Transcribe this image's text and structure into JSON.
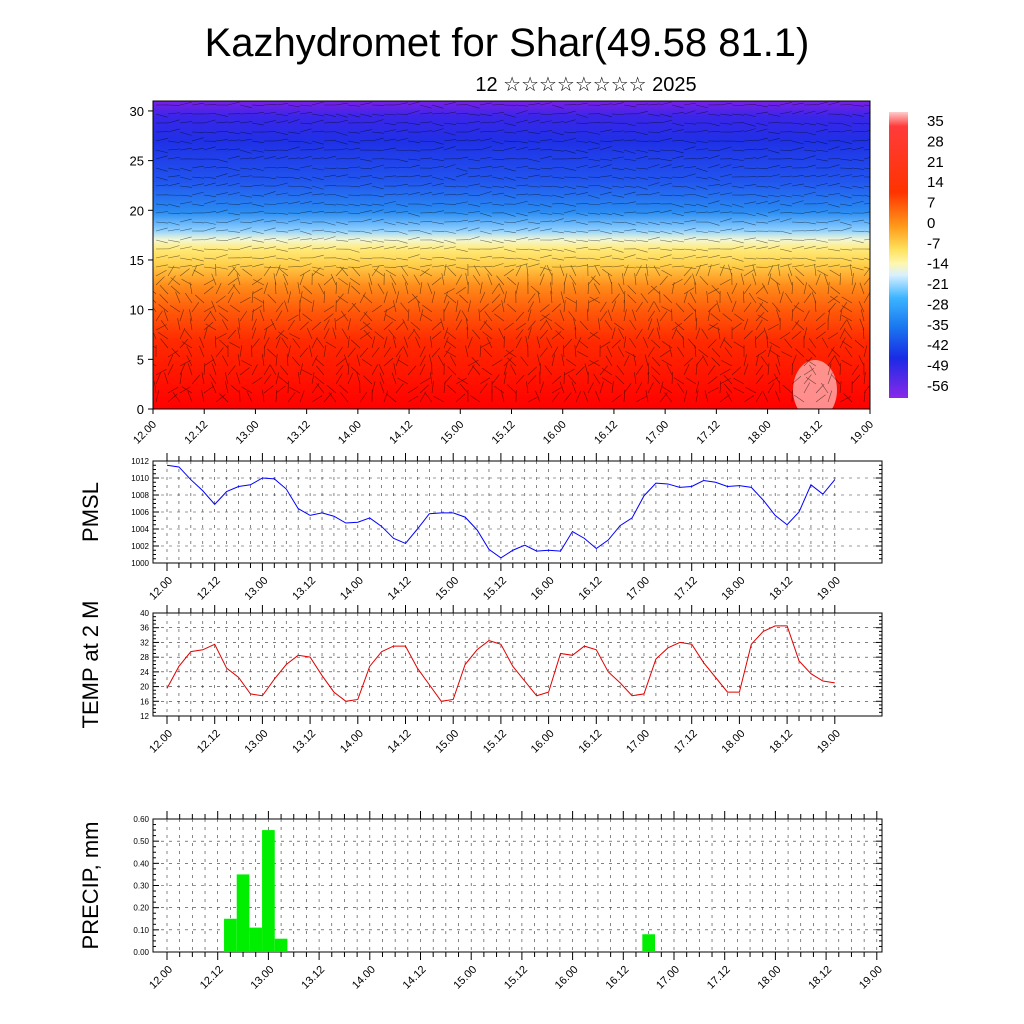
{
  "header": {
    "title": "Kazhydromet for Shar(49.58 81.1)",
    "subtitle": "12 ☆☆☆☆☆☆☆☆ 2025"
  },
  "time_labels": [
    "12.00",
    "12.12",
    "13.00",
    "13.12",
    "14.00",
    "14.12",
    "15.00",
    "15.12",
    "16.00",
    "16.12",
    "17.00",
    "17.12",
    "18.00",
    "18.12",
    "19.00"
  ],
  "chart_data": [
    {
      "id": "cross_section",
      "type": "heatmap",
      "x_tick_labels": [
        "12.00",
        "12.12",
        "13.00",
        "13.12",
        "14.00",
        "14.12",
        "15.00",
        "15.12",
        "16.00",
        "16.12",
        "17.00",
        "17.12",
        "18.00",
        "18.12",
        "19.00"
      ],
      "y_ticks": [
        0,
        5,
        10,
        15,
        20,
        25,
        30
      ],
      "ylim": [
        0,
        31
      ],
      "colorbar_ticks": [
        "35",
        "28",
        "21",
        "14",
        "7",
        "0",
        "-7",
        "-14",
        "-21",
        "-28",
        "-35",
        "-42",
        "-49",
        "-56"
      ],
      "value_range": [
        -60,
        38
      ],
      "colors": {
        "hot": "#ff0000",
        "warm": "#ff8c00",
        "neutral": "#fff29a",
        "cool": "#33aaff",
        "cold": "#1f2ee0",
        "coldest": "#7a1fe6"
      },
      "overlay": "wind-vectors"
    },
    {
      "id": "pmsl",
      "type": "line",
      "ylabel": "PMSL",
      "y_ticks": [
        "1000",
        "1002",
        "1004",
        "1006",
        "1008",
        "1010",
        "1012"
      ],
      "ylim": [
        1000,
        1012
      ],
      "x_tick_labels": [
        "12.00",
        "12.12",
        "13.00",
        "13.12",
        "14.00",
        "14.12",
        "15.00",
        "15.12",
        "16.00",
        "16.12",
        "17.00",
        "17.12",
        "18.00",
        "18.12",
        "19.00"
      ],
      "x_step_hours": 3,
      "color": "#0000ff",
      "values": [
        1011.5,
        1011.3,
        1009.8,
        1008.5,
        1006.9,
        1008.4,
        1009.0,
        1009.2,
        1010.0,
        1009.9,
        1008.7,
        1006.4,
        1005.6,
        1005.9,
        1005.5,
        1004.7,
        1004.8,
        1005.3,
        1004.3,
        1002.9,
        1002.3,
        1004.0,
        1005.8,
        1005.9,
        1005.9,
        1005.4,
        1003.9,
        1001.6,
        1000.6,
        1001.5,
        1002.1,
        1001.4,
        1001.5,
        1001.4,
        1003.7,
        1002.9,
        1001.7,
        1002.7,
        1004.4,
        1005.3,
        1007.9,
        1009.4,
        1009.3,
        1008.9,
        1009.0,
        1009.7,
        1009.5,
        1009.0,
        1009.1,
        1008.9,
        1007.4,
        1005.6,
        1004.5,
        1006.0,
        1009.2,
        1008.1,
        1009.8
      ]
    },
    {
      "id": "temp2m",
      "type": "line",
      "ylabel": "TEMP at 2 M",
      "y_ticks": [
        "12",
        "16",
        "20",
        "24",
        "28",
        "32",
        "36",
        "40"
      ],
      "ylim": [
        12,
        40
      ],
      "x_tick_labels": [
        "12.00",
        "12.12",
        "13.00",
        "13.12",
        "14.00",
        "14.12",
        "15.00",
        "15.12",
        "16.00",
        "16.12",
        "17.00",
        "17.12",
        "18.00",
        "18.12",
        "19.00"
      ],
      "x_step_hours": 3,
      "color": "#e00000",
      "values": [
        19.5,
        25.5,
        29.5,
        30.0,
        31.5,
        25.0,
        22.5,
        18.0,
        17.5,
        22.0,
        26.0,
        28.5,
        28.0,
        23.0,
        18.5,
        16.0,
        16.5,
        25.5,
        29.5,
        31.0,
        31.0,
        25.0,
        20.5,
        16.0,
        16.5,
        26.0,
        30.0,
        32.5,
        31.5,
        25.5,
        21.5,
        17.5,
        18.5,
        29.0,
        28.5,
        31.0,
        30.0,
        24.0,
        21.0,
        17.5,
        18.0,
        27.5,
        30.5,
        32.0,
        31.5,
        26.5,
        22.5,
        18.5,
        18.5,
        31.5,
        35.0,
        36.5,
        36.5,
        27.0,
        23.5,
        21.5,
        21.0
      ]
    },
    {
      "id": "precip",
      "type": "bar",
      "ylabel": "PRECIP, mm",
      "y_ticks": [
        "0.00",
        "0.10",
        "0.20",
        "0.30",
        "0.40",
        "0.50",
        "0.60"
      ],
      "ylim": [
        0,
        0.6
      ],
      "x_tick_labels": [
        "12.00",
        "12.12",
        "13.00",
        "13.12",
        "14.00",
        "14.12",
        "15.00",
        "15.12",
        "16.00",
        "16.12",
        "17.00",
        "17.12",
        "18.00",
        "18.12",
        "19.00"
      ],
      "x_step_hours": 3,
      "color": "#00ee00",
      "values": [
        0,
        0,
        0,
        0,
        0,
        0.15,
        0.35,
        0.11,
        0.55,
        0.06,
        0,
        0,
        0,
        0,
        0,
        0,
        0,
        0,
        0,
        0,
        0,
        0,
        0,
        0,
        0,
        0,
        0,
        0,
        0,
        0,
        0,
        0,
        0,
        0,
        0,
        0,
        0,
        0,
        0.08,
        0,
        0,
        0,
        0,
        0,
        0,
        0,
        0,
        0,
        0,
        0,
        0,
        0,
        0,
        0,
        0,
        0,
        0
      ]
    }
  ]
}
